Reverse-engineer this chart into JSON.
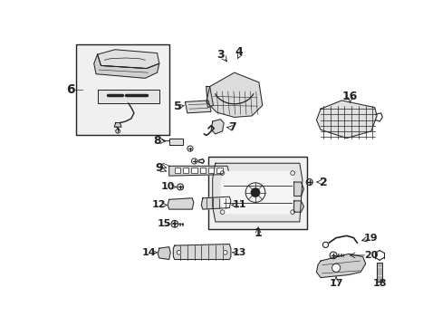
{
  "bg_color": "#ffffff",
  "line_color": "#222222",
  "fill_color": "#e8e8e8",
  "font_size_label": 9,
  "font_size_num": 8
}
